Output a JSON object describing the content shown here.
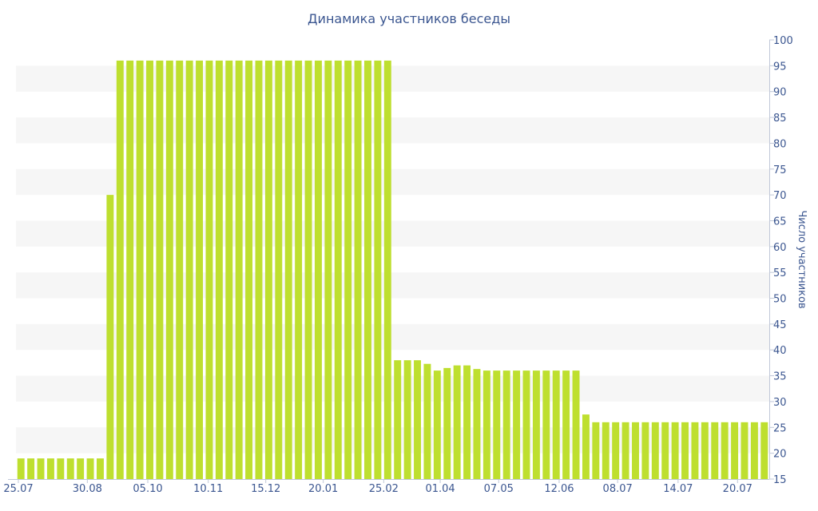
{
  "chart_data": {
    "type": "bar",
    "title": "Динамика участников беседы",
    "xlabel": "",
    "ylabel": "Число участников",
    "ylim": [
      15,
      100
    ],
    "ytick_step": 5,
    "y_axis_side": "right",
    "grid": "horizontal bands",
    "xtick_labels": [
      "25.07",
      "30.08",
      "05.10",
      "10.11",
      "15.12",
      "20.01",
      "25.02",
      "01.04",
      "07.05",
      "12.06",
      "08.07",
      "14.07",
      "20.07"
    ],
    "xtick_positions": [
      0,
      6.7,
      12.8,
      18.9,
      24.7,
      30.5,
      36.6,
      42.3,
      48.2,
      54.3,
      60.2,
      66.3,
      72.3
    ],
    "values": [
      19,
      19,
      19,
      19,
      19,
      19,
      19,
      19,
      19,
      70,
      96,
      96,
      96,
      96,
      96,
      96,
      96,
      96,
      96,
      96,
      96,
      96,
      96,
      96,
      96,
      96,
      96,
      96,
      96,
      96,
      96,
      96,
      96,
      96,
      96,
      96,
      96,
      96,
      38,
      38,
      38,
      37.3,
      36,
      36.5,
      37,
      37,
      36.3,
      36,
      36,
      36,
      36,
      36,
      36,
      36,
      36,
      36,
      36,
      27.5,
      26,
      26,
      26,
      26,
      26,
      26,
      26,
      26,
      26,
      26,
      26,
      26,
      26,
      26,
      26,
      26,
      26,
      26
    ],
    "bar_color": "#bedf2f",
    "band_color": "#f6f6f6",
    "text_color": "#3b5690"
  }
}
